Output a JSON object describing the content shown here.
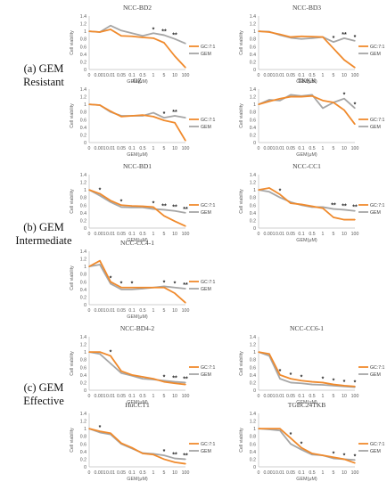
{
  "groups": [
    {
      "line1": "(a) GEM",
      "line2": "Resistant"
    },
    {
      "line1": "(b) GEM",
      "line2": "Intermediate"
    },
    {
      "line1": "(c) GEM",
      "line2": "Effective"
    }
  ],
  "common": {
    "ylabel": "Cell viability",
    "xlabel": "GEM(μM)",
    "yticks": [
      "0",
      "0.2",
      "0.4",
      "0.6",
      "0.8",
      "1",
      "1.2",
      "1.4"
    ],
    "xticks": [
      "0",
      "0.001",
      "0.01",
      "0.05",
      "0.1",
      "0.5",
      "1",
      "5",
      "10",
      "100"
    ],
    "legend": [
      "GC:7:1",
      "GEM"
    ],
    "colors": {
      "gc": "#f08a2c",
      "gem": "#a6a6a6"
    },
    "sig_marker": "*"
  },
  "chart_data": [
    {
      "type": "line",
      "title": "NCC-BD2",
      "ylim": [
        0,
        1.4
      ],
      "x": [
        "0",
        "0.001",
        "0.01",
        "0.05",
        "0.1",
        "0.5",
        "1",
        "5",
        "10",
        "100"
      ],
      "series": [
        {
          "name": "GC:7:1",
          "values": [
            1.0,
            0.98,
            1.05,
            0.88,
            0.87,
            0.84,
            0.82,
            0.7,
            0.35,
            0.05
          ]
        },
        {
          "name": "GEM",
          "values": [
            1.0,
            0.98,
            1.15,
            1.02,
            0.95,
            0.88,
            0.95,
            0.9,
            0.8,
            0.68
          ]
        }
      ],
      "sig": [
        "",
        "",
        "",
        "",
        "",
        "",
        "*",
        "**",
        "**",
        ""
      ]
    },
    {
      "type": "line",
      "title": "NCC-BD3",
      "ylim": [
        0,
        1.4
      ],
      "x": [
        "0",
        "0.001",
        "0.01",
        "0.05",
        "0.1",
        "0.5",
        "1",
        "5",
        "10",
        "100"
      ],
      "series": [
        {
          "name": "GC:7:1",
          "values": [
            1.0,
            0.98,
            0.92,
            0.85,
            0.87,
            0.86,
            0.85,
            0.55,
            0.25,
            0.05
          ]
        },
        {
          "name": "GEM",
          "values": [
            1.0,
            0.99,
            0.9,
            0.83,
            0.8,
            0.82,
            0.85,
            0.72,
            0.82,
            0.75
          ]
        }
      ],
      "sig": [
        "",
        "",
        "",
        "",
        "",
        "",
        "",
        "*",
        "**",
        "*"
      ]
    },
    {
      "type": "line",
      "title": "OZ",
      "ylim": [
        0,
        1.4
      ],
      "x": [
        "0",
        "0.001",
        "0.01",
        "0.05",
        "0.1",
        "0.5",
        "1",
        "5",
        "10",
        "100"
      ],
      "series": [
        {
          "name": "GC:7:1",
          "values": [
            1.0,
            0.98,
            0.82,
            0.68,
            0.7,
            0.72,
            0.68,
            0.58,
            0.52,
            0.05
          ]
        },
        {
          "name": "GEM",
          "values": [
            1.0,
            0.98,
            0.8,
            0.7,
            0.7,
            0.7,
            0.78,
            0.65,
            0.7,
            0.65
          ]
        }
      ],
      "sig": [
        "",
        "",
        "",
        "",
        "",
        "",
        "",
        "*",
        "**",
        ""
      ]
    },
    {
      "type": "line",
      "title": "TKKK",
      "ylim": [
        0,
        1.4
      ],
      "x": [
        "0",
        "0.001",
        "0.01",
        "0.05",
        "0.1",
        "0.5",
        "1",
        "5",
        "10",
        "100"
      ],
      "series": [
        {
          "name": "GC:7:1",
          "values": [
            1.0,
            1.08,
            1.15,
            1.2,
            1.2,
            1.22,
            1.1,
            1.05,
            0.85,
            0.48
          ]
        },
        {
          "name": "GEM",
          "values": [
            1.0,
            1.12,
            1.1,
            1.25,
            1.22,
            1.25,
            0.9,
            1.05,
            1.15,
            0.9
          ]
        }
      ],
      "sig": [
        "",
        "",
        "",
        "",
        "",
        "",
        "",
        "",
        "*",
        "*"
      ]
    },
    {
      "type": "line",
      "title": "NCC-BD1",
      "ylim": [
        0,
        1.4
      ],
      "x": [
        "0",
        "0.001",
        "0.01",
        "0.05",
        "0.1",
        "0.5",
        "1",
        "5",
        "10",
        "100"
      ],
      "series": [
        {
          "name": "GC:7:1",
          "values": [
            1.0,
            0.9,
            0.72,
            0.6,
            0.58,
            0.57,
            0.55,
            0.32,
            0.18,
            0.05
          ]
        },
        {
          "name": "GEM",
          "values": [
            1.0,
            0.85,
            0.68,
            0.55,
            0.54,
            0.54,
            0.5,
            0.48,
            0.45,
            0.4
          ]
        }
      ],
      "sig": [
        "",
        "*",
        "",
        "*",
        "",
        "",
        "*",
        "**",
        "**",
        "**"
      ]
    },
    {
      "type": "line",
      "title": "NCC-CC1",
      "ylim": [
        0,
        1.4
      ],
      "x": [
        "0",
        "0.001",
        "0.01",
        "0.05",
        "0.1",
        "0.5",
        "1",
        "5",
        "10",
        "100"
      ],
      "series": [
        {
          "name": "GC:7:1",
          "values": [
            1.0,
            1.05,
            0.88,
            0.65,
            0.62,
            0.57,
            0.52,
            0.28,
            0.22,
            0.22
          ]
        },
        {
          "name": "GEM",
          "values": [
            1.0,
            0.95,
            0.8,
            0.68,
            0.6,
            0.55,
            0.55,
            0.5,
            0.48,
            0.45
          ]
        }
      ],
      "sig": [
        "",
        "",
        "*",
        "",
        "",
        "",
        "",
        "**",
        "**",
        "**"
      ]
    },
    {
      "type": "line",
      "title": "NCC-CC4-1",
      "ylim": [
        0,
        1.4
      ],
      "x": [
        "0",
        "0.001",
        "0.01",
        "0.05",
        "0.1",
        "0.5",
        "1",
        "5",
        "10",
        "100"
      ],
      "series": [
        {
          "name": "GC:7:1",
          "values": [
            1.0,
            1.15,
            0.6,
            0.45,
            0.45,
            0.45,
            0.45,
            0.45,
            0.3,
            0.05
          ]
        },
        {
          "name": "GEM",
          "values": [
            1.0,
            1.05,
            0.55,
            0.4,
            0.4,
            0.42,
            0.45,
            0.48,
            0.45,
            0.42
          ]
        }
      ],
      "sig": [
        "",
        "",
        "*",
        "*",
        "*",
        "",
        "",
        "*",
        "*",
        "**"
      ]
    },
    {
      "type": "line",
      "title": "NCC-BD4-2",
      "ylim": [
        0,
        1.4
      ],
      "x": [
        "0",
        "0.001",
        "0.01",
        "0.05",
        "0.1",
        "0.5",
        "1",
        "5",
        "10",
        "100"
      ],
      "series": [
        {
          "name": "GC:7:1",
          "values": [
            1.0,
            1.0,
            0.9,
            0.5,
            0.4,
            0.35,
            0.3,
            0.22,
            0.18,
            0.15
          ]
        },
        {
          "name": "GEM",
          "values": [
            1.0,
            0.95,
            0.7,
            0.45,
            0.38,
            0.3,
            0.28,
            0.25,
            0.22,
            0.2
          ]
        }
      ],
      "sig": [
        "",
        "",
        "*",
        "",
        "",
        "",
        "",
        "*",
        "**",
        "**"
      ]
    },
    {
      "type": "line",
      "title": "NCC-CC6-1",
      "ylim": [
        0,
        1.4
      ],
      "x": [
        "0",
        "0.001",
        "0.01",
        "0.05",
        "0.1",
        "0.5",
        "1",
        "5",
        "10",
        "100"
      ],
      "series": [
        {
          "name": "GC:7:1",
          "values": [
            1.0,
            0.95,
            0.4,
            0.3,
            0.25,
            0.22,
            0.2,
            0.15,
            0.12,
            0.1
          ]
        },
        {
          "name": "GEM",
          "values": [
            1.0,
            0.9,
            0.3,
            0.2,
            0.18,
            0.15,
            0.14,
            0.12,
            0.1,
            0.08
          ]
        }
      ],
      "sig": [
        "",
        "",
        "*",
        "*",
        "*",
        "",
        "*",
        "*",
        "*",
        "*"
      ]
    },
    {
      "type": "line",
      "title": "HuCCT1",
      "ylim": [
        0,
        1.4
      ],
      "x": [
        "0",
        "0.001",
        "0.01",
        "0.05",
        "0.1",
        "0.5",
        "1",
        "5",
        "10",
        "100"
      ],
      "series": [
        {
          "name": "GC:7:1",
          "values": [
            1.0,
            0.93,
            0.88,
            0.62,
            0.5,
            0.35,
            0.32,
            0.2,
            0.12,
            0.08
          ]
        },
        {
          "name": "GEM",
          "values": [
            1.0,
            0.9,
            0.85,
            0.6,
            0.48,
            0.36,
            0.34,
            0.3,
            0.22,
            0.2
          ]
        }
      ],
      "sig": [
        "",
        "*",
        "",
        "",
        "",
        "",
        "",
        "*",
        "**",
        "**"
      ]
    },
    {
      "type": "line",
      "title": "TGBC24TKB",
      "ylim": [
        0,
        1.4
      ],
      "x": [
        "0",
        "0.001",
        "0.01",
        "0.05",
        "0.1",
        "0.5",
        "1",
        "5",
        "10",
        "100"
      ],
      "series": [
        {
          "name": "GC:7:1",
          "values": [
            1.0,
            1.0,
            1.0,
            0.75,
            0.5,
            0.35,
            0.3,
            0.25,
            0.2,
            0.1
          ]
        },
        {
          "name": "GEM",
          "values": [
            1.0,
            0.98,
            0.95,
            0.6,
            0.45,
            0.32,
            0.3,
            0.22,
            0.2,
            0.18
          ]
        }
      ],
      "sig": [
        "",
        "",
        "",
        "*",
        "*",
        "",
        "",
        "*",
        "*",
        "*"
      ]
    }
  ]
}
